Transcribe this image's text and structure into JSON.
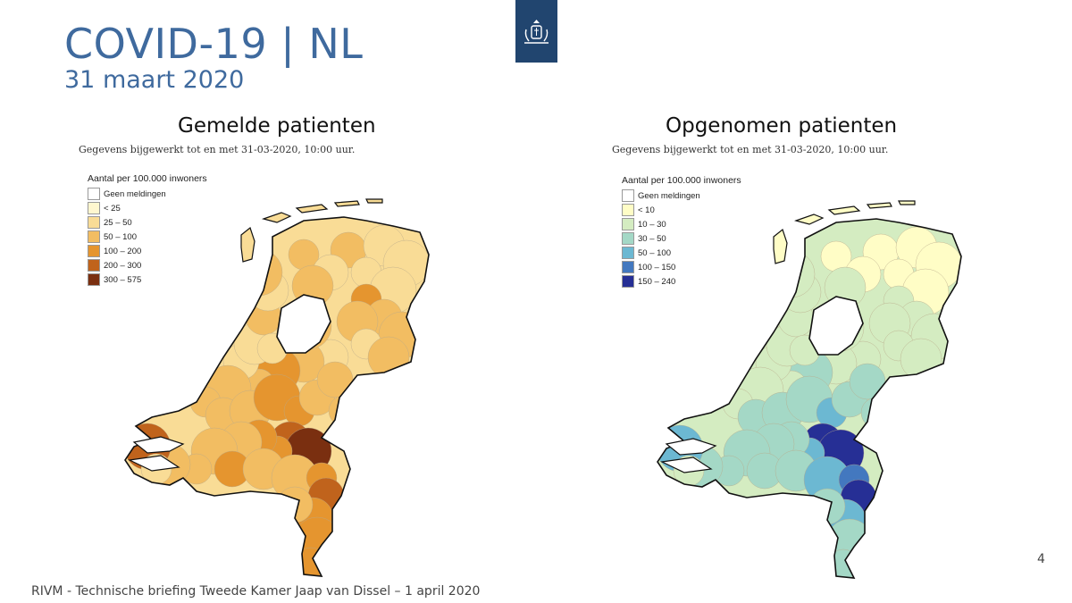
{
  "header": {
    "title": "COVID-19 | NL",
    "subtitle": "31 maart 2020"
  },
  "panels": [
    {
      "title": "Gemelde patienten",
      "note": "Gegevens bijgewerkt tot en met 31-03-2020, 10:00 uur.",
      "legend_title": "Aantal per 100.000 inwoners",
      "legend": [
        {
          "label": "Geen meldingen",
          "color": "#ffffff"
        },
        {
          "label": "< 25",
          "color": "#fff7cf"
        },
        {
          "label": "25 – 50",
          "color": "#f9dc96"
        },
        {
          "label": "50 – 100",
          "color": "#f2bd62"
        },
        {
          "label": "100 – 200",
          "color": "#e5952f"
        },
        {
          "label": "200 – 300",
          "color": "#c0631c"
        },
        {
          "label": "300 – 575",
          "color": "#7a2f10"
        }
      ]
    },
    {
      "title": "Opgenomen patienten",
      "note": "Gegevens bijgewerkt tot en met 31-03-2020, 10:00 uur.",
      "legend_title": "Aantal per 100.000 inwoners",
      "legend": [
        {
          "label": "Geen meldingen",
          "color": "#ffffff"
        },
        {
          "label": "< 10",
          "color": "#fffdc6"
        },
        {
          "label": "10 – 30",
          "color": "#d4ecc1"
        },
        {
          "label": "30 – 50",
          "color": "#a4d8c6"
        },
        {
          "label": "50 – 100",
          "color": "#6cb8d2"
        },
        {
          "label": "100 – 150",
          "color": "#4378bf"
        },
        {
          "label": "150 – 240",
          "color": "#262f95"
        }
      ]
    }
  ],
  "footer": "RIVM - Technische briefing Tweede Kamer Jaap van Dissel – 1 april 2020",
  "page_number": "4"
}
